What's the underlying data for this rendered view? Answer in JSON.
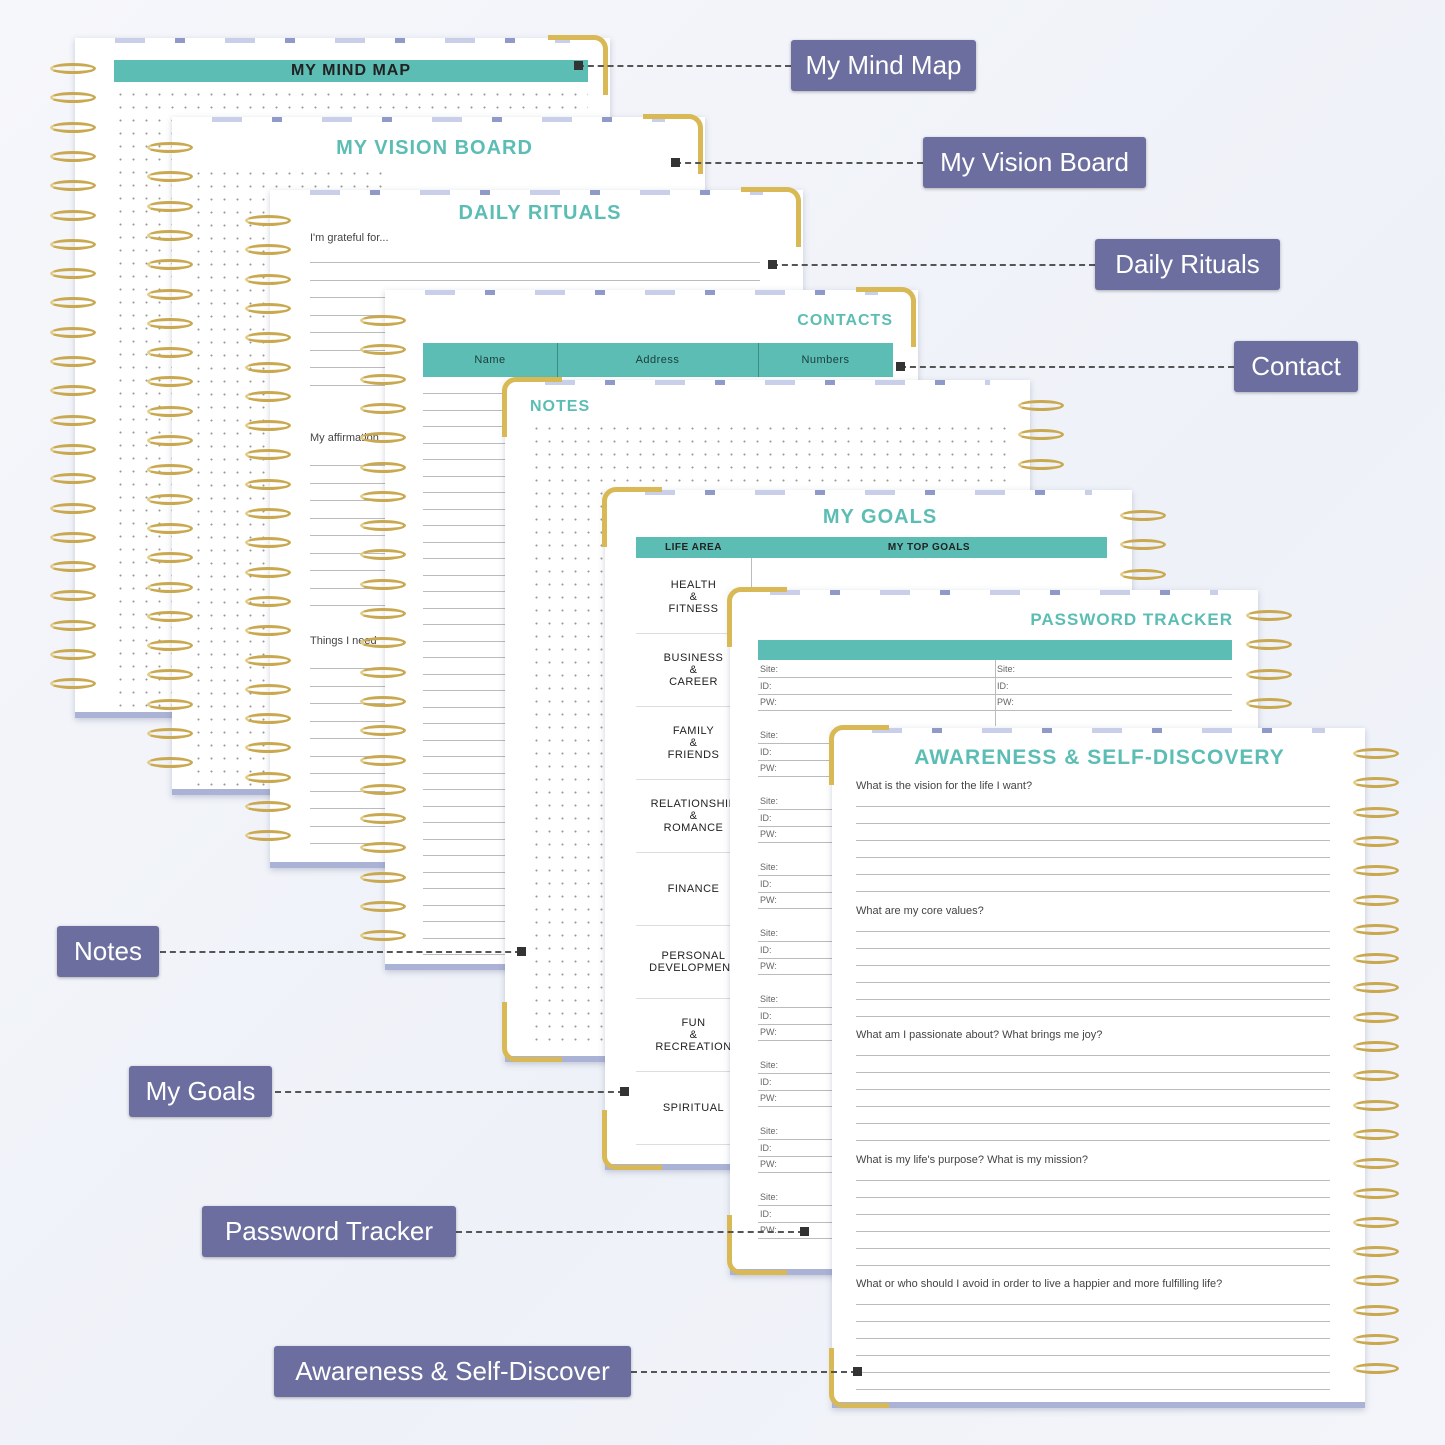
{
  "colors": {
    "teal": "#5bbdb4",
    "label_bg": "#6b6e9e",
    "gold": "#c9a850"
  },
  "pages": {
    "mind_map": {
      "title": "MY MIND MAP"
    },
    "vision_board": {
      "title": "MY VISION BOARD"
    },
    "daily_rituals": {
      "title": "DAILY RITUALS",
      "prompts": [
        "I'm grateful for...",
        "My affirmation",
        "Things I need"
      ]
    },
    "contacts": {
      "title": "CONTACTS",
      "columns": [
        "Name",
        "Address",
        "Numbers"
      ]
    },
    "notes": {
      "title": "NOTES"
    },
    "my_goals": {
      "title": "MY GOALS",
      "columns": [
        "LIFE AREA",
        "MY TOP GOALS"
      ],
      "areas": [
        [
          "HEALTH",
          "&",
          "FITNESS"
        ],
        [
          "BUSINESS",
          "&",
          "CAREER"
        ],
        [
          "FAMILY",
          "&",
          "FRIENDS"
        ],
        [
          "RELATIONSHIP",
          "&",
          "ROMANCE"
        ],
        [
          "FINANCE"
        ],
        [
          "PERSONAL",
          "DEVELOPMENT"
        ],
        [
          "FUN",
          "&",
          "RECREATION"
        ],
        [
          "SPIRITUAL"
        ]
      ]
    },
    "password_tracker": {
      "title": "PASSWORD TRACKER",
      "fields": [
        "Site:",
        "ID:",
        "PW:"
      ]
    },
    "awareness": {
      "title": "AWARENESS & SELF-DISCOVERY",
      "questions": [
        "What is the vision for the life I want?",
        "What are my core values?",
        "What am I passionate about? What brings me joy?",
        "What is my life's purpose? What is my mission?",
        "What or who should I avoid in order to live a happier and more fulfilling life?"
      ]
    }
  },
  "labels": [
    "My Mind Map",
    "My Vision Board",
    "Daily Rituals",
    "Contact",
    "Notes",
    "My Goals",
    "Password Tracker",
    "Awareness & Self-Discover"
  ]
}
